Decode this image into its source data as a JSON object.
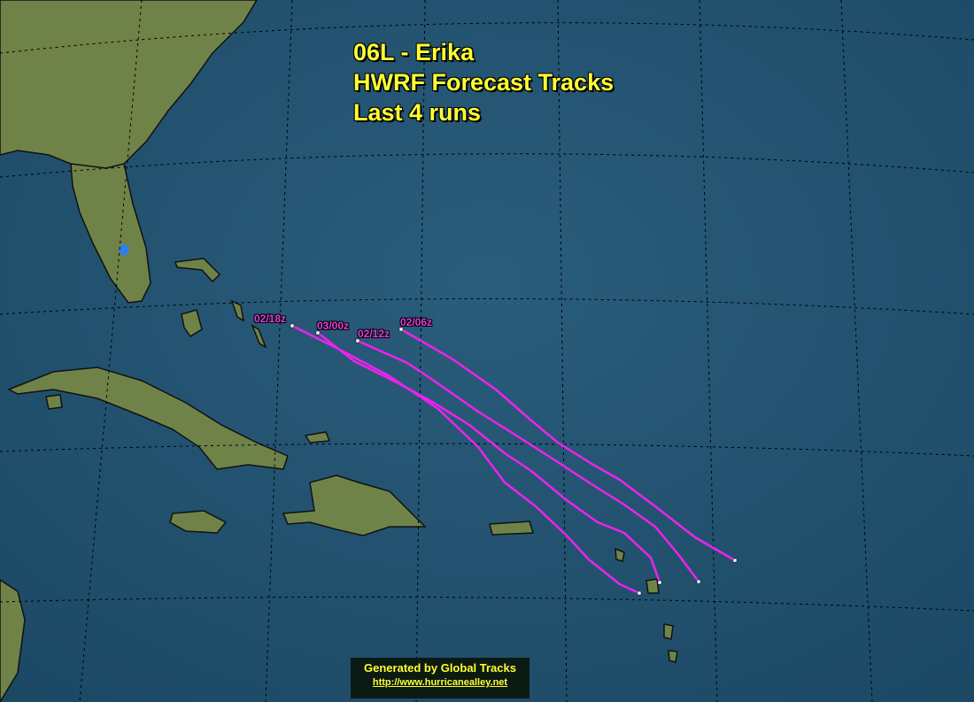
{
  "title": {
    "line1": "06L - Erika",
    "line2": "HWRF Forecast Tracks",
    "line3": "Last 4 runs"
  },
  "tracks": [
    {
      "run": "02/18z"
    },
    {
      "run": "03/00z"
    },
    {
      "run": "02/12z"
    },
    {
      "run": "02/06z"
    }
  ],
  "track_color": "#ee22ee",
  "title_color": "#ffff33",
  "footer": {
    "generated": "Generated by Global Tracks",
    "url": "http://www.hurricanealley.net"
  }
}
